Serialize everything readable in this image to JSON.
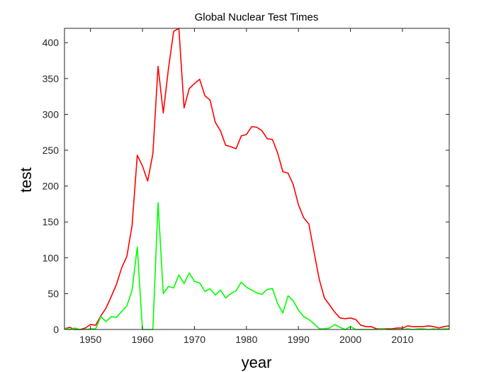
{
  "chart_data": {
    "type": "line",
    "title": "Global Nuclear Test Times",
    "xlabel": "year",
    "ylabel": "test",
    "xlim": [
      1945,
      2019
    ],
    "ylim": [
      0,
      420
    ],
    "xticks": [
      1950,
      1960,
      1970,
      1980,
      1990,
      2000,
      2010
    ],
    "yticks": [
      0,
      50,
      100,
      150,
      200,
      250,
      300,
      350,
      400
    ],
    "grid": false,
    "legend": "none",
    "x": [
      1945,
      1946,
      1947,
      1948,
      1949,
      1950,
      1951,
      1952,
      1953,
      1954,
      1955,
      1956,
      1957,
      1958,
      1959,
      1960,
      1961,
      1962,
      1963,
      1964,
      1965,
      1966,
      1967,
      1968,
      1969,
      1970,
      1971,
      1972,
      1973,
      1974,
      1975,
      1976,
      1977,
      1978,
      1979,
      1980,
      1981,
      1982,
      1983,
      1984,
      1985,
      1986,
      1987,
      1988,
      1989,
      1990,
      1991,
      1992,
      1993,
      1994,
      1995,
      1996,
      1997,
      1998,
      1999,
      2000,
      2001,
      2002,
      2003,
      2004,
      2005,
      2006,
      2007,
      2008,
      2009,
      2010,
      2011,
      2012,
      2013,
      2014,
      2015,
      2016,
      2017,
      2018,
      2019
    ],
    "series": [
      {
        "color": "#ff0000",
        "values": [
          1,
          3,
          0,
          0,
          2,
          7,
          6,
          19,
          30,
          46,
          63,
          86,
          102,
          145,
          243,
          228,
          207,
          245,
          367,
          302,
          364,
          416,
          420,
          309,
          336,
          343,
          349,
          326,
          320,
          289,
          277,
          257,
          255,
          252,
          270,
          272,
          283,
          282,
          277,
          266,
          265,
          246,
          220,
          218,
          202,
          174,
          156,
          147,
          108,
          70,
          44,
          34,
          24,
          16,
          15,
          16,
          14,
          6,
          4,
          4,
          1,
          1,
          1,
          1,
          2,
          2,
          5,
          4,
          4,
          4,
          5,
          4,
          2,
          4,
          5
        ]
      },
      {
        "color": "#00ff00",
        "values": [
          2,
          0,
          2,
          0,
          0,
          1,
          1,
          18,
          11,
          18,
          17,
          25,
          33,
          55,
          115,
          0,
          0,
          0,
          177,
          50,
          60,
          58,
          76,
          64,
          79,
          67,
          65,
          53,
          57,
          48,
          55,
          44,
          50,
          54,
          66,
          59,
          55,
          51,
          49,
          56,
          57,
          36,
          23,
          47,
          40,
          27,
          18,
          14,
          8,
          1,
          1,
          2,
          7,
          3,
          0,
          4,
          0,
          0,
          0,
          0,
          0,
          1,
          0,
          0,
          0,
          0,
          1,
          0,
          1,
          1,
          0,
          1,
          0,
          1,
          1
        ]
      }
    ]
  }
}
